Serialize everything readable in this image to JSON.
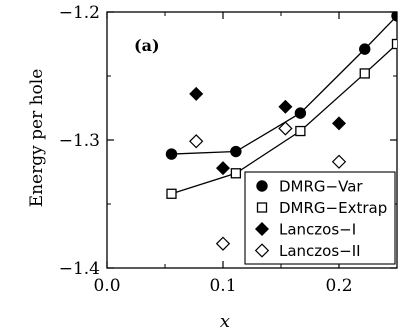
{
  "chart_data": {
    "type": "scatter",
    "panel_label": "(a)",
    "xlabel": "x",
    "ylabel": "Energy per hole",
    "xlim": [
      0.0,
      0.25
    ],
    "ylim": [
      -1.4,
      -1.2
    ],
    "x_ticks": [
      0.0,
      0.1,
      0.2
    ],
    "y_ticks": [
      -1.2,
      -1.3,
      -1.4
    ],
    "x_tick_labels": [
      "0.0",
      "0.1",
      "0.2"
    ],
    "y_tick_labels": [
      "−1.2",
      "−1.3",
      "−1.4"
    ],
    "legend_position": "bottom-right",
    "series": [
      {
        "name": "DMRG−Var",
        "marker": "circle-filled",
        "line": true,
        "x": [
          0.0556,
          0.1111,
          0.1667,
          0.2222,
          0.25
        ],
        "y": [
          -1.311,
          -1.309,
          -1.279,
          -1.229,
          -1.203
        ]
      },
      {
        "name": "DMRG−Extrap",
        "marker": "square-open",
        "line": true,
        "x": [
          0.0556,
          0.1111,
          0.1667,
          0.2222,
          0.25
        ],
        "y": [
          -1.342,
          -1.326,
          -1.293,
          -1.248,
          -1.225
        ]
      },
      {
        "name": "Lanczos−I",
        "marker": "diamond-filled",
        "line": false,
        "x": [
          0.0769,
          0.1,
          0.1538,
          0.2
        ],
        "y": [
          -1.264,
          -1.322,
          -1.274,
          -1.287
        ]
      },
      {
        "name": "Lanczos−II",
        "marker": "diamond-open",
        "line": false,
        "x": [
          0.0769,
          0.1,
          0.1538,
          0.2
        ],
        "y": [
          -1.301,
          -1.381,
          -1.291,
          -1.317
        ]
      }
    ]
  }
}
